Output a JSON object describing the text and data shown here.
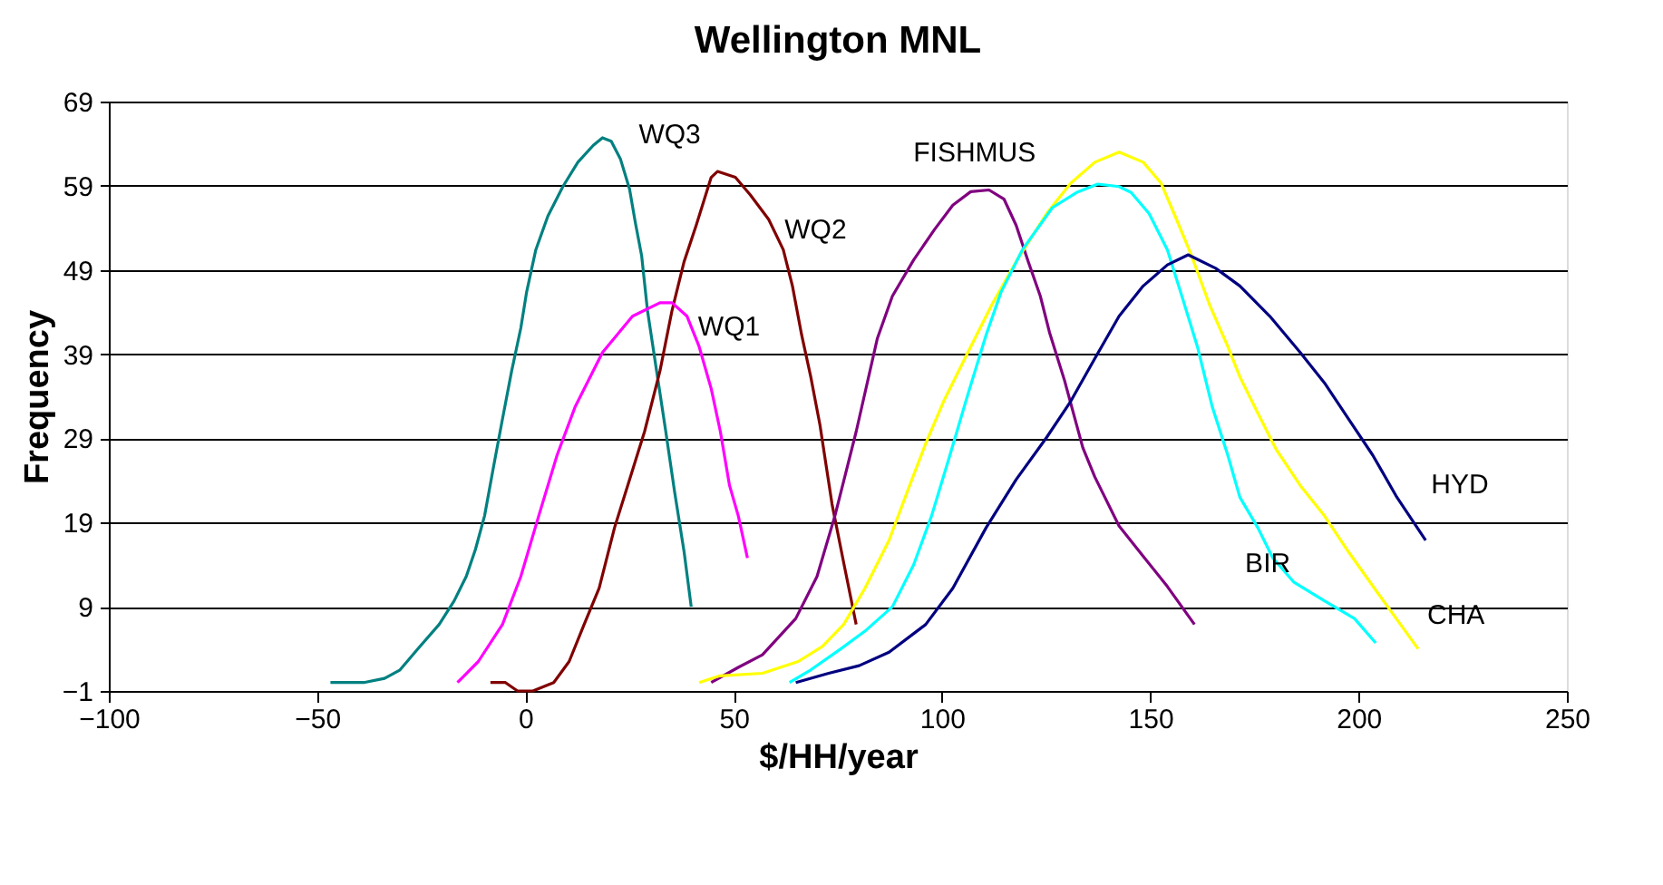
{
  "chart_data": {
    "type": "line",
    "title": "Wellington MNL",
    "xlabel": "$/HH/year",
    "ylabel": "Frequency",
    "xlim": [
      -100,
      250
    ],
    "xticks": [
      -100,
      -50,
      0,
      50,
      100,
      150,
      200,
      250
    ],
    "ylim": [
      -1,
      69
    ],
    "yticks": [
      -1,
      9,
      19,
      29,
      39,
      49,
      59,
      69
    ],
    "grid": "y",
    "marker": "none",
    "line_style": "solid",
    "series": [
      {
        "name": "WQ3",
        "color": "#008080",
        "x": [
          -46.8,
          -38.8,
          -33.8,
          -30.1,
          -25.8,
          -20.7,
          -17.1,
          -14.2,
          -12.0,
          -9.8,
          -7.7,
          -5.5,
          -3.3,
          -1.1,
          0.3,
          2.5,
          5.4,
          9.0,
          12.6,
          16.3,
          18.5,
          20.6,
          22.8,
          25.0,
          26.4,
          27.9,
          29.3,
          31.5,
          33.7,
          35.8,
          38.1,
          39.8
        ],
        "values": [
          0,
          0,
          0.5,
          1.5,
          4.0,
          6.9,
          9.7,
          12.6,
          15.8,
          19.8,
          25.5,
          31.3,
          37.0,
          42.1,
          46.4,
          51.4,
          55.4,
          58.9,
          61.8,
          63.8,
          64.7,
          64.3,
          62.2,
          58.6,
          54.6,
          50.7,
          44.2,
          37.0,
          29.8,
          22.7,
          15.5,
          9.0
        ]
      },
      {
        "name": "WQ2",
        "color": "#800000",
        "x": [
          -8.4,
          -4.8,
          -1.9,
          1.8,
          6.8,
          10.5,
          14.1,
          17.7,
          21.4,
          25.0,
          28.6,
          32.3,
          35.2,
          38.1,
          41.0,
          44.6,
          46.1,
          50.4,
          54.0,
          58.4,
          61.9,
          64.1,
          66.3,
          68.5,
          70.7,
          73.6,
          76.5,
          79.4
        ],
        "values": [
          0,
          0,
          -1,
          -1,
          0,
          2.5,
          6.9,
          11.2,
          18.4,
          24.1,
          29.8,
          37.0,
          44.2,
          50.0,
          54.3,
          60.0,
          60.7,
          60.0,
          57.9,
          55.0,
          51.4,
          47.1,
          41.3,
          36.3,
          30.6,
          21.2,
          14.0,
          6.9
        ]
      },
      {
        "name": "WQ1",
        "color": "#ff00ff",
        "x": [
          -16.3,
          -11.3,
          -5.5,
          -1.1,
          3.2,
          7.6,
          11.9,
          18.5,
          25.7,
          32.3,
          35.2,
          38.8,
          41.7,
          44.6,
          46.8,
          49.0,
          51.1,
          53.3
        ],
        "values": [
          0,
          2.5,
          6.9,
          12.6,
          19.8,
          27.0,
          32.7,
          39.2,
          43.5,
          45.1,
          45.1,
          43.5,
          39.9,
          34.9,
          29.8,
          23.4,
          19.8,
          14.8
        ]
      },
      {
        "name": "FISHMUS",
        "color": "#800080",
        "x": [
          44.6,
          51.1,
          56.9,
          64.9,
          70.0,
          74.3,
          79.4,
          84.5,
          88.1,
          93.2,
          98.2,
          102.6,
          106.9,
          111.3,
          114.9,
          117.8,
          120.7,
          123.6,
          125.8,
          129.4,
          133.8,
          136.7,
          142.5,
          148.3,
          154.1,
          160.6
        ],
        "values": [
          0,
          1.8,
          3.3,
          7.6,
          12.6,
          19.8,
          29.8,
          40.9,
          45.9,
          50.2,
          53.8,
          56.7,
          58.3,
          58.5,
          57.4,
          54.3,
          50.0,
          45.9,
          41.6,
          35.9,
          27.9,
          24.4,
          18.6,
          15.0,
          11.4,
          6.9
        ]
      },
      {
        "name": "CHA",
        "color": "#ffff00",
        "x": [
          41.7,
          46.7,
          56.9,
          65.5,
          71.3,
          76.4,
          81.5,
          87.3,
          91.7,
          96.1,
          100.4,
          106.2,
          112.0,
          117.8,
          125.1,
          130.9,
          136.7,
          142.5,
          148.3,
          152.6,
          156.3,
          159.9,
          164.2,
          168.6,
          171.5,
          175.8,
          180.2,
          186.0,
          191.8,
          197.6,
          204.8,
          214.3
        ],
        "values": [
          0,
          0.8,
          1.1,
          2.5,
          4.3,
          6.9,
          11.2,
          16.9,
          22.7,
          28.4,
          33.4,
          39.2,
          44.9,
          50.0,
          55.7,
          59.3,
          61.8,
          63.0,
          61.8,
          59.3,
          55.0,
          50.7,
          44.9,
          39.9,
          36.3,
          32.0,
          27.7,
          23.4,
          19.8,
          15.5,
          10.5,
          4.0
        ]
      },
      {
        "name": "BIR",
        "color": "#00ffff",
        "x": [
          63.4,
          68.5,
          75.7,
          81.5,
          88.1,
          93.2,
          97.5,
          101.9,
          106.2,
          110.6,
          114.2,
          119.3,
          126.5,
          132.3,
          137.4,
          142.5,
          145.4,
          149.7,
          154.1,
          157.7,
          161.3,
          164.9,
          168.6,
          171.5,
          175.8,
          179.4,
          184.5,
          191.8,
          199.0,
          204.1
        ],
        "values": [
          0,
          1.5,
          4.0,
          6.1,
          9.0,
          14.0,
          19.8,
          27.0,
          34.2,
          41.3,
          46.4,
          51.4,
          56.4,
          58.2,
          59.2,
          58.9,
          58.2,
          55.7,
          51.4,
          45.7,
          39.9,
          32.7,
          27.0,
          22.0,
          18.4,
          14.8,
          11.9,
          9.7,
          7.6,
          4.7
        ]
      },
      {
        "name": "HYD",
        "color": "#000080",
        "x": [
          64.9,
          72.8,
          80.1,
          87.3,
          96.1,
          102.6,
          110.6,
          117.8,
          125.1,
          130.9,
          136.7,
          142.5,
          148.3,
          154.1,
          159.1,
          165.7,
          171.5,
          178.7,
          186.0,
          191.8,
          197.6,
          203.4,
          209.2,
          216.1
        ],
        "values": [
          0,
          1.1,
          2.0,
          3.6,
          6.9,
          11.2,
          18.4,
          24.1,
          29.1,
          33.4,
          38.5,
          43.5,
          47.1,
          49.6,
          50.8,
          49.2,
          47.1,
          43.5,
          39.2,
          35.6,
          31.3,
          27.0,
          22.0,
          16.9
        ]
      }
    ]
  }
}
